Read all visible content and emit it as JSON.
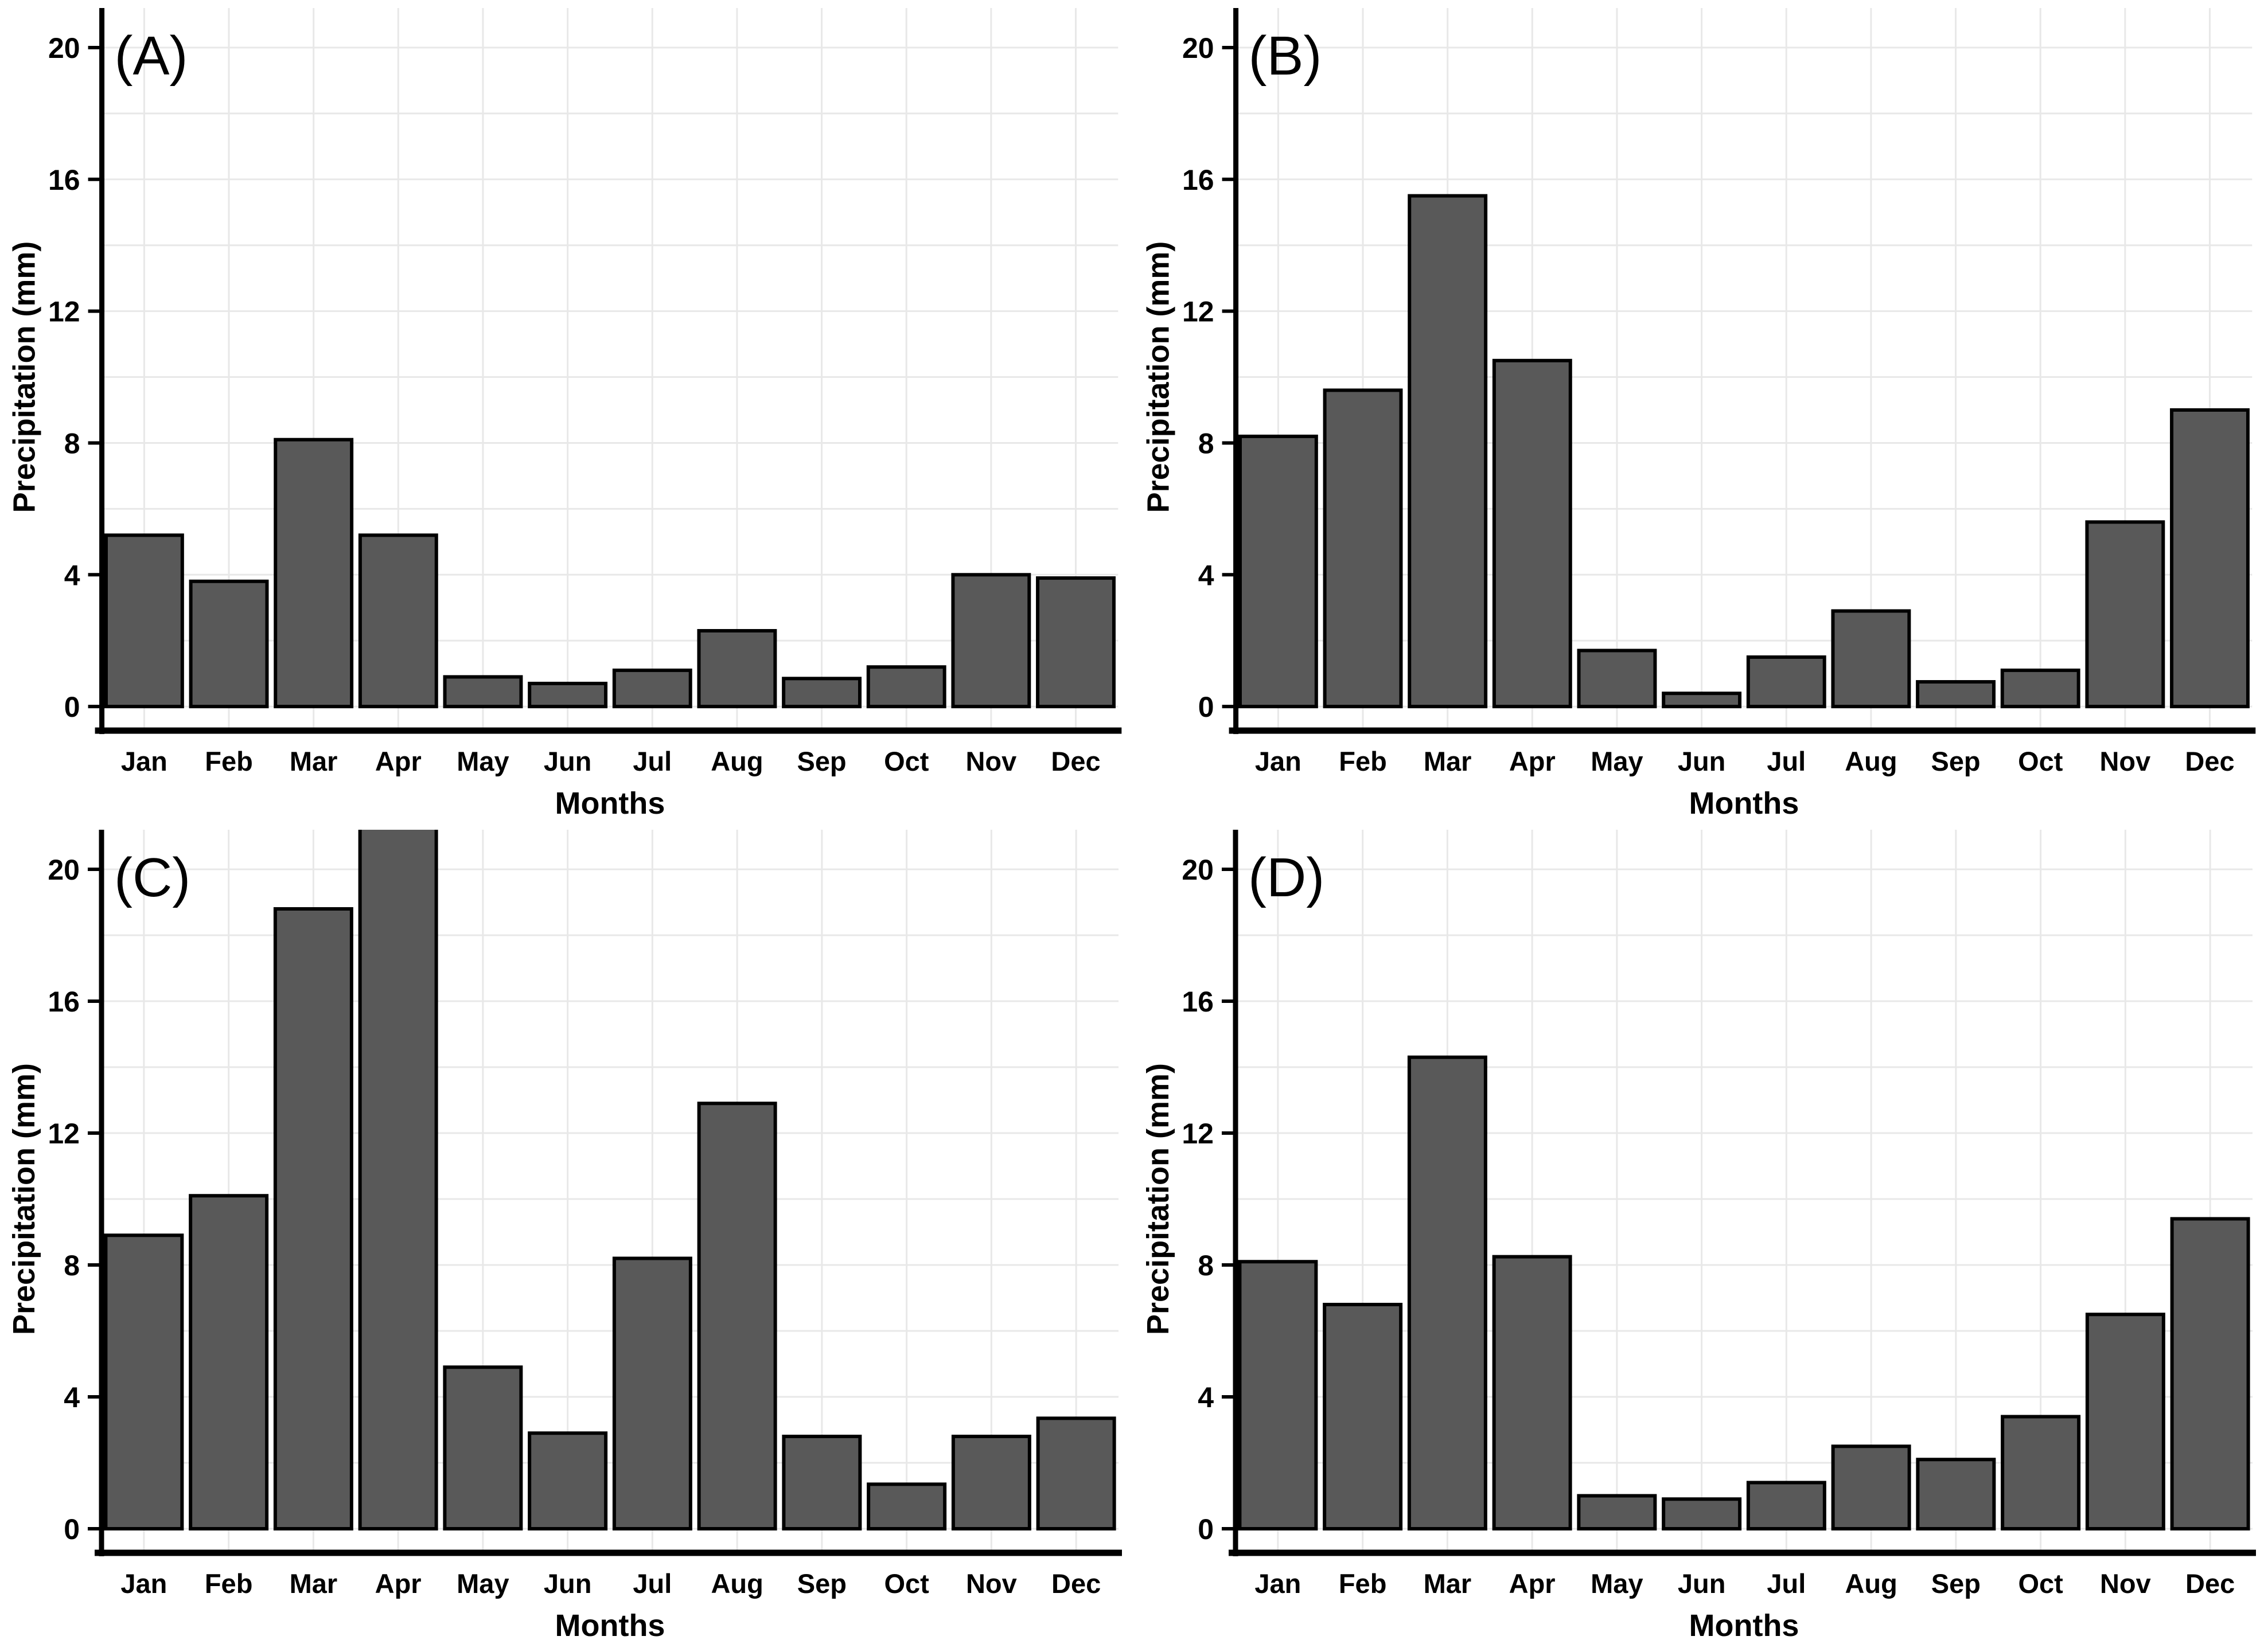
{
  "figure": {
    "background": "#ffffff",
    "panel_letter_color": "#ff0000"
  },
  "axes": {
    "xlabel": "Months",
    "ylabel": "Precipitation (mm)",
    "months": [
      "Jan",
      "Feb",
      "Mar",
      "Apr",
      "May",
      "Jun",
      "Jul",
      "Aug",
      "Sep",
      "Oct",
      "Nov",
      "Dec"
    ],
    "yticks": [
      "0",
      "4",
      "8",
      "12",
      "16",
      "20"
    ],
    "ytick_values": [
      0,
      4,
      8,
      12,
      16,
      20
    ]
  },
  "style": {
    "bar_fill": "#595959",
    "bar_stroke": "#000000",
    "grid_color": "#e8e8e8",
    "axis_color": "#000000",
    "tick_color": "#000000"
  },
  "chart_data": [
    {
      "type": "bar",
      "label": "(A)",
      "xlabel": "Months",
      "ylabel": "Precipitation (mm)",
      "categories": [
        "Jan",
        "Feb",
        "Mar",
        "Apr",
        "May",
        "Jun",
        "Jul",
        "Aug",
        "Sep",
        "Oct",
        "Nov",
        "Dec"
      ],
      "values": [
        5.2,
        3.8,
        8.1,
        5.2,
        0.9,
        0.7,
        1.1,
        2.3,
        0.85,
        1.2,
        4.0,
        3.9
      ],
      "ylim": [
        0,
        21.2
      ],
      "grid": true,
      "legend": "none"
    },
    {
      "type": "bar",
      "label": "(B)",
      "xlabel": "Months",
      "ylabel": "Precipitation (mm)",
      "categories": [
        "Jan",
        "Feb",
        "Mar",
        "Apr",
        "May",
        "Jun",
        "Jul",
        "Aug",
        "Sep",
        "Oct",
        "Nov",
        "Dec"
      ],
      "values": [
        8.2,
        9.6,
        15.5,
        10.5,
        1.7,
        0.4,
        1.5,
        2.9,
        0.75,
        1.1,
        5.6,
        9.0
      ],
      "ylim": [
        0,
        21.2
      ],
      "grid": true,
      "legend": "none"
    },
    {
      "type": "bar",
      "label": "(C)",
      "xlabel": "Months",
      "ylabel": "Precipitation (mm)",
      "categories": [
        "Jan",
        "Feb",
        "Mar",
        "Apr",
        "May",
        "Jun",
        "Jul",
        "Aug",
        "Sep",
        "Oct",
        "Nov",
        "Dec"
      ],
      "values": [
        8.9,
        10.1,
        18.8,
        21.5,
        4.9,
        2.9,
        8.2,
        12.9,
        2.8,
        1.35,
        2.8,
        3.35
      ],
      "clipped_bars": [
        "Apr"
      ],
      "ylim": [
        0,
        21.2
      ],
      "grid": true,
      "legend": "none"
    },
    {
      "type": "bar",
      "label": "(D)",
      "xlabel": "Months",
      "ylabel": "Precipitation (mm)",
      "categories": [
        "Jan",
        "Feb",
        "Mar",
        "Apr",
        "May",
        "Jun",
        "Jul",
        "Aug",
        "Sep",
        "Oct",
        "Nov",
        "Dec"
      ],
      "values": [
        8.1,
        6.8,
        14.3,
        8.25,
        1.0,
        0.9,
        1.4,
        2.5,
        2.1,
        3.4,
        6.5,
        9.4
      ],
      "ylim": [
        0,
        21.2
      ],
      "grid": true,
      "legend": "none"
    }
  ]
}
